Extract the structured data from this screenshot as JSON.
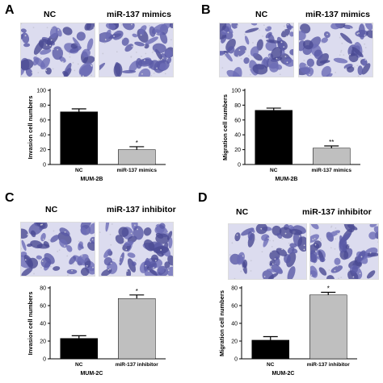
{
  "panels": [
    {
      "letter": "A",
      "image_labels": [
        "NC",
        "miR-137 mimics"
      ],
      "chart_data": {
        "type": "bar",
        "categories": [
          "NC",
          "miR-137 mimics"
        ],
        "values": [
          71,
          20
        ],
        "errors": [
          4,
          4
        ],
        "significance": [
          "",
          "*"
        ],
        "colors": [
          "#000000",
          "#bfbfbf"
        ],
        "ylabel": "Invasion cell numbers",
        "xlabel": "MUM-2B",
        "ylim": [
          0,
          100
        ],
        "yticks": [
          "0",
          "20",
          "40",
          "60",
          "80",
          "100"
        ]
      }
    },
    {
      "letter": "B",
      "image_labels": [
        "NC",
        "miR-137 mimics"
      ],
      "chart_data": {
        "type": "bar",
        "categories": [
          "NC",
          "miR-137 mimics"
        ],
        "values": [
          73,
          22
        ],
        "errors": [
          3,
          3
        ],
        "significance": [
          "",
          "**"
        ],
        "colors": [
          "#000000",
          "#bfbfbf"
        ],
        "ylabel": "Migration cell numbers",
        "xlabel": "MUM-2B",
        "ylim": [
          0,
          100
        ],
        "yticks": [
          "0",
          "20",
          "40",
          "60",
          "80",
          "100"
        ]
      }
    },
    {
      "letter": "C",
      "image_labels": [
        "NC",
        "miR-137 inhibitor"
      ],
      "chart_data": {
        "type": "bar",
        "categories": [
          "NC",
          "miR-137 inhibitor"
        ],
        "values": [
          23,
          68
        ],
        "errors": [
          3,
          4
        ],
        "significance": [
          "",
          "*"
        ],
        "colors": [
          "#000000",
          "#bfbfbf"
        ],
        "ylabel": "Invasion cell numbers",
        "xlabel": "MUM-2C",
        "ylim": [
          0,
          80
        ],
        "yticks": [
          "0",
          "20",
          "40",
          "60",
          "80"
        ]
      }
    },
    {
      "letter": "D",
      "image_labels": [
        "NC",
        "miR-137 inhibitor"
      ],
      "chart_data": {
        "type": "bar",
        "categories": [
          "NC",
          "miR-137 inhibitor"
        ],
        "values": [
          21,
          72
        ],
        "errors": [
          4,
          3
        ],
        "significance": [
          "",
          "*"
        ],
        "colors": [
          "#000000",
          "#bfbfbf"
        ],
        "ylabel": "Migration cell numbers",
        "xlabel": "MUM-2C",
        "ylim": [
          0,
          80
        ],
        "yticks": [
          "0",
          "20",
          "40",
          "60",
          "80"
        ]
      }
    }
  ]
}
